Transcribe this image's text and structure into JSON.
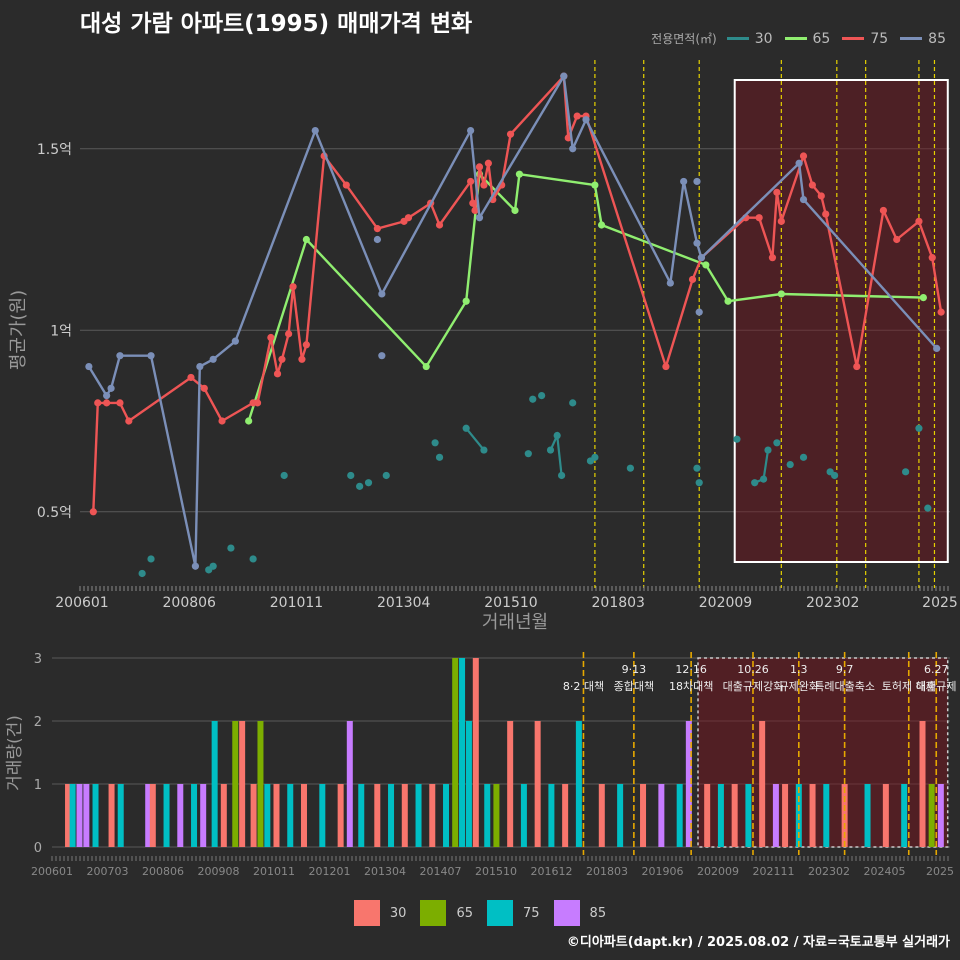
{
  "title": "대성 가람 아파트(1995) 매매가격 변화",
  "legend": {
    "title": "전용면적(㎡)",
    "items": [
      {
        "label": "30",
        "line_color": "#2e8b8b",
        "bar_color": "#f8766d"
      },
      {
        "label": "65",
        "line_color": "#90ee70",
        "bar_color": "#7cae00"
      },
      {
        "label": "75",
        "line_color": "#ee5555",
        "bar_color": "#00bfc4"
      },
      {
        "label": "85",
        "line_color": "#7b8fb8",
        "bar_color": "#c77cff"
      }
    ]
  },
  "footer": "©디아파트(dapt.kr) / 2025.08.02 / 자료=국토교통부 실거래가",
  "chart_data": [
    {
      "type": "line",
      "xlabel": "거래년월",
      "ylabel": "평균가(원)",
      "x_ticks": [
        "200601",
        "200806",
        "201011",
        "201304",
        "201510",
        "201803",
        "202009",
        "202302",
        "2025"
      ],
      "y_ticks": [
        {
          "value": 0.5,
          "label": "0.5억"
        },
        {
          "value": 1.0,
          "label": "1억"
        },
        {
          "value": 1.5,
          "label": "1.5억"
        }
      ],
      "ylim": [
        0.29,
        1.75
      ],
      "xlim": [
        2006.0,
        2025.6
      ],
      "highlight_range": [
        2020.75,
        2025.55
      ],
      "vlines": [
        2017.6,
        2018.7,
        2019.95,
        2021.8,
        2023.05,
        2023.7,
        2024.9,
        2025.25
      ],
      "series": [
        {
          "name": "30",
          "style": "points",
          "color": "#2e8b8b",
          "points": [
            [
              2007.4,
              0.33
            ],
            [
              2007.6,
              0.37
            ],
            [
              2008.9,
              0.34
            ],
            [
              2009.0,
              0.35
            ],
            [
              2009.4,
              0.4
            ],
            [
              2009.9,
              0.37
            ],
            [
              2010.6,
              0.6
            ],
            [
              2012.1,
              0.6
            ],
            [
              2012.3,
              0.57
            ],
            [
              2012.5,
              0.58
            ],
            [
              2012.9,
              0.6
            ],
            [
              2014.0,
              0.69
            ],
            [
              2014.1,
              0.65
            ],
            [
              2014.7,
              0.73
            ],
            [
              2015.1,
              0.67
            ],
            [
              2016.1,
              0.66
            ],
            [
              2016.2,
              0.81
            ],
            [
              2016.4,
              0.82
            ],
            [
              2016.6,
              0.67
            ],
            [
              2016.75,
              0.71
            ],
            [
              2016.85,
              0.6
            ],
            [
              2017.1,
              0.8
            ],
            [
              2017.5,
              0.64
            ],
            [
              2017.6,
              0.65
            ],
            [
              2018.4,
              0.62
            ],
            [
              2019.9,
              0.62
            ],
            [
              2019.95,
              0.58
            ],
            [
              2020.8,
              0.7
            ],
            [
              2021.2,
              0.58
            ],
            [
              2021.4,
              0.59
            ],
            [
              2021.5,
              0.67
            ],
            [
              2021.7,
              0.69
            ],
            [
              2022.0,
              0.63
            ],
            [
              2022.3,
              0.65
            ],
            [
              2022.9,
              0.61
            ],
            [
              2023.0,
              0.6
            ],
            [
              2024.6,
              0.61
            ],
            [
              2024.9,
              0.73
            ],
            [
              2025.1,
              0.51
            ]
          ],
          "segments": [
            [
              [
                2014.7,
                0.73
              ],
              [
                2015.1,
                0.67
              ]
            ],
            [
              [
                2016.6,
                0.67
              ],
              [
                2016.75,
                0.71
              ],
              [
                2016.85,
                0.6
              ]
            ],
            [
              [
                2021.2,
                0.58
              ],
              [
                2021.4,
                0.59
              ],
              [
                2021.5,
                0.67
              ]
            ]
          ]
        },
        {
          "name": "65",
          "style": "line",
          "color": "#90ee70",
          "points": [
            [
              2009.8,
              0.75
            ],
            [
              2011.1,
              1.25
            ],
            [
              2013.8,
              0.9
            ],
            [
              2014.7,
              1.08
            ],
            [
              2015.0,
              1.43
            ],
            [
              2015.8,
              1.33
            ],
            [
              2015.9,
              1.43
            ],
            [
              2017.6,
              1.4
            ],
            [
              2017.75,
              1.29
            ],
            [
              2020.1,
              1.18
            ],
            [
              2020.6,
              1.08
            ],
            [
              2021.8,
              1.1
            ],
            [
              2025.0,
              1.09
            ]
          ]
        },
        {
          "name": "75",
          "style": "line",
          "color": "#ee5555",
          "points": [
            [
              2006.3,
              0.5
            ],
            [
              2006.4,
              0.8
            ],
            [
              2006.6,
              0.8
            ],
            [
              2006.9,
              0.8
            ],
            [
              2007.1,
              0.75
            ],
            [
              2008.5,
              0.87
            ],
            [
              2008.8,
              0.84
            ],
            [
              2009.2,
              0.75
            ],
            [
              2009.9,
              0.8
            ],
            [
              2010.0,
              0.8
            ],
            [
              2010.3,
              0.98
            ],
            [
              2010.45,
              0.88
            ],
            [
              2010.55,
              0.92
            ],
            [
              2010.7,
              0.99
            ],
            [
              2010.8,
              1.12
            ],
            [
              2011.0,
              0.92
            ],
            [
              2011.1,
              0.96
            ],
            [
              2011.5,
              1.48
            ],
            [
              2012.0,
              1.4
            ],
            [
              2012.7,
              1.28
            ],
            [
              2013.3,
              1.3
            ],
            [
              2013.4,
              1.31
            ],
            [
              2013.9,
              1.35
            ],
            [
              2014.1,
              1.29
            ],
            [
              2014.8,
              1.41
            ],
            [
              2014.85,
              1.35
            ],
            [
              2014.9,
              1.33
            ],
            [
              2015.0,
              1.45
            ],
            [
              2015.1,
              1.4
            ],
            [
              2015.2,
              1.46
            ],
            [
              2015.3,
              1.36
            ],
            [
              2015.5,
              1.4
            ],
            [
              2015.7,
              1.54
            ],
            [
              2016.9,
              1.7
            ],
            [
              2017.0,
              1.53
            ],
            [
              2017.2,
              1.59
            ],
            [
              2017.4,
              1.59
            ],
            [
              2019.2,
              0.9
            ],
            [
              2019.8,
              1.14
            ],
            [
              2020.0,
              1.2
            ],
            [
              2021.0,
              1.31
            ],
            [
              2021.3,
              1.31
            ],
            [
              2021.6,
              1.2
            ],
            [
              2021.7,
              1.38
            ],
            [
              2021.8,
              1.3
            ],
            [
              2022.3,
              1.48
            ],
            [
              2022.5,
              1.4
            ],
            [
              2022.7,
              1.37
            ],
            [
              2022.8,
              1.32
            ],
            [
              2023.5,
              0.9
            ],
            [
              2024.1,
              1.33
            ],
            [
              2024.4,
              1.25
            ],
            [
              2024.9,
              1.3
            ],
            [
              2025.2,
              1.2
            ],
            [
              2025.4,
              1.05
            ]
          ]
        },
        {
          "name": "85",
          "style": "line",
          "color": "#7b8fb8",
          "points": [
            [
              2006.2,
              0.9
            ],
            [
              2006.6,
              0.82
            ],
            [
              2006.7,
              0.84
            ],
            [
              2006.9,
              0.93
            ],
            [
              2007.6,
              0.93
            ],
            [
              2008.6,
              0.35
            ],
            [
              2008.7,
              0.9
            ],
            [
              2009.0,
              0.92
            ],
            [
              2009.5,
              0.97
            ],
            [
              2011.3,
              1.55
            ],
            [
              2012.8,
              1.1
            ],
            [
              2014.8,
              1.55
            ],
            [
              2015.0,
              1.31
            ],
            [
              2016.9,
              1.7
            ],
            [
              2017.1,
              1.5
            ],
            [
              2017.4,
              1.58
            ],
            [
              2019.3,
              1.13
            ],
            [
              2019.6,
              1.41
            ],
            [
              2019.9,
              1.24
            ],
            [
              2020.0,
              1.2
            ],
            [
              2022.2,
              1.46
            ],
            [
              2022.3,
              1.36
            ],
            [
              2025.3,
              0.95
            ]
          ],
          "extra_points": [
            [
              2012.7,
              1.25
            ],
            [
              2012.8,
              0.93
            ],
            [
              2019.9,
              1.41
            ],
            [
              2019.95,
              1.05
            ]
          ]
        }
      ]
    },
    {
      "type": "bar",
      "xlabel": "",
      "ylabel": "거래량(건)",
      "x_ticks": [
        "200601",
        "200703",
        "200806",
        "200908",
        "201011",
        "201201",
        "201304",
        "201407",
        "201510",
        "201612",
        "201803",
        "201906",
        "202009",
        "202111",
        "202302",
        "202405",
        "2025"
      ],
      "y_ticks": [
        0,
        1,
        2,
        3
      ],
      "ylim": [
        0,
        3
      ],
      "xlim": [
        2006.0,
        2025.6
      ],
      "highlight_range": [
        2020.1,
        2025.55
      ],
      "events": [
        {
          "x": 2017.6,
          "date": "",
          "label": "8·2 대책"
        },
        {
          "x": 2018.7,
          "date": "9·13",
          "label": "종합대책"
        },
        {
          "x": 2019.95,
          "date": "12·16",
          "label": "18차대책"
        },
        {
          "x": 2021.3,
          "date": "10.26",
          "label": "대출규제강화"
        },
        {
          "x": 2022.3,
          "date": "1.3",
          "label": "규제완화"
        },
        {
          "x": 2023.3,
          "date": "9.7",
          "label": "특례대출축소"
        },
        {
          "x": 2024.7,
          "date": "",
          "label": "토허제 해제"
        },
        {
          "x": 2025.3,
          "date": "6.27",
          "label": "대출규제"
        }
      ],
      "bars": [
        {
          "x": 2006.35,
          "series": 0,
          "value": 1
        },
        {
          "x": 2006.45,
          "series": 2,
          "value": 1
        },
        {
          "x": 2006.6,
          "series": 3,
          "value": 1
        },
        {
          "x": 2006.75,
          "series": 3,
          "value": 1
        },
        {
          "x": 2006.95,
          "series": 2,
          "value": 1
        },
        {
          "x": 2007.3,
          "series": 0,
          "value": 1
        },
        {
          "x": 2007.5,
          "series": 2,
          "value": 1
        },
        {
          "x": 2008.1,
          "series": 3,
          "value": 1
        },
        {
          "x": 2008.2,
          "series": 0,
          "value": 1
        },
        {
          "x": 2008.5,
          "series": 2,
          "value": 1
        },
        {
          "x": 2008.8,
          "series": 3,
          "value": 1
        },
        {
          "x": 2009.1,
          "series": 2,
          "value": 1
        },
        {
          "x": 2009.3,
          "series": 3,
          "value": 1
        },
        {
          "x": 2009.55,
          "series": 2,
          "value": 2
        },
        {
          "x": 2009.75,
          "series": 0,
          "value": 1
        },
        {
          "x": 2010.0,
          "series": 1,
          "value": 2
        },
        {
          "x": 2010.15,
          "series": 0,
          "value": 2
        },
        {
          "x": 2010.4,
          "series": 0,
          "value": 1
        },
        {
          "x": 2010.55,
          "series": 1,
          "value": 2
        },
        {
          "x": 2010.7,
          "series": 2,
          "value": 1
        },
        {
          "x": 2010.9,
          "series": 0,
          "value": 1
        },
        {
          "x": 2011.2,
          "series": 2,
          "value": 1
        },
        {
          "x": 2011.5,
          "series": 0,
          "value": 1
        },
        {
          "x": 2011.9,
          "series": 2,
          "value": 1
        },
        {
          "x": 2012.3,
          "series": 0,
          "value": 1
        },
        {
          "x": 2012.5,
          "series": 3,
          "value": 2
        },
        {
          "x": 2012.75,
          "series": 2,
          "value": 1
        },
        {
          "x": 2013.1,
          "series": 0,
          "value": 1
        },
        {
          "x": 2013.4,
          "series": 2,
          "value": 1
        },
        {
          "x": 2013.7,
          "series": 0,
          "value": 1
        },
        {
          "x": 2014.0,
          "series": 2,
          "value": 1
        },
        {
          "x": 2014.3,
          "series": 0,
          "value": 1
        },
        {
          "x": 2014.6,
          "series": 2,
          "value": 1
        },
        {
          "x": 2014.8,
          "series": 1,
          "value": 3
        },
        {
          "x": 2014.95,
          "series": 2,
          "value": 3
        },
        {
          "x": 2015.1,
          "series": 2,
          "value": 2
        },
        {
          "x": 2015.25,
          "series": 0,
          "value": 3
        },
        {
          "x": 2015.5,
          "series": 2,
          "value": 1
        },
        {
          "x": 2015.7,
          "series": 1,
          "value": 1
        },
        {
          "x": 2016.0,
          "series": 0,
          "value": 2
        },
        {
          "x": 2016.3,
          "series": 2,
          "value": 1
        },
        {
          "x": 2016.6,
          "series": 0,
          "value": 2
        },
        {
          "x": 2016.9,
          "series": 2,
          "value": 1
        },
        {
          "x": 2017.2,
          "series": 0,
          "value": 1
        },
        {
          "x": 2017.5,
          "series": 2,
          "value": 2
        },
        {
          "x": 2018.0,
          "series": 0,
          "value": 1
        },
        {
          "x": 2018.4,
          "series": 2,
          "value": 1
        },
        {
          "x": 2018.9,
          "series": 0,
          "value": 1
        },
        {
          "x": 2019.3,
          "series": 3,
          "value": 1
        },
        {
          "x": 2019.7,
          "series": 2,
          "value": 1
        },
        {
          "x": 2019.9,
          "series": 3,
          "value": 2
        },
        {
          "x": 2020.3,
          "series": 0,
          "value": 1
        },
        {
          "x": 2020.6,
          "series": 2,
          "value": 1
        },
        {
          "x": 2020.9,
          "series": 0,
          "value": 1
        },
        {
          "x": 2021.2,
          "series": 2,
          "value": 1
        },
        {
          "x": 2021.5,
          "series": 0,
          "value": 2
        },
        {
          "x": 2021.8,
          "series": 3,
          "value": 1
        },
        {
          "x": 2022.0,
          "series": 0,
          "value": 1
        },
        {
          "x": 2022.3,
          "series": 2,
          "value": 1
        },
        {
          "x": 2022.6,
          "series": 0,
          "value": 1
        },
        {
          "x": 2022.9,
          "series": 2,
          "value": 1
        },
        {
          "x": 2023.3,
          "series": 0,
          "value": 1
        },
        {
          "x": 2023.8,
          "series": 2,
          "value": 1
        },
        {
          "x": 2024.2,
          "series": 0,
          "value": 1
        },
        {
          "x": 2024.6,
          "series": 2,
          "value": 1
        },
        {
          "x": 2025.0,
          "series": 0,
          "value": 2
        },
        {
          "x": 2025.2,
          "series": 1,
          "value": 1
        },
        {
          "x": 2025.4,
          "series": 3,
          "value": 1
        }
      ]
    }
  ]
}
